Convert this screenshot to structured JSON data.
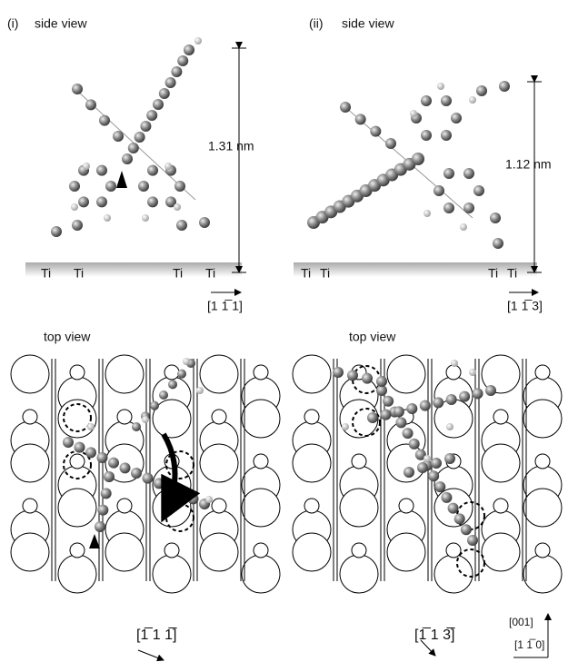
{
  "panels": [
    {
      "label": "(i)",
      "side_title": "side view",
      "height": "1.31 nm",
      "ti_labels": [
        "Ti",
        "Ti",
        "Ti",
        "Ti"
      ],
      "side_direction": "[1 1̅ 1]",
      "top_title": "top view",
      "top_direction": "[1̅ 1 1̅]"
    },
    {
      "label": "(ii)",
      "side_title": "side view",
      "height": "1.12 nm",
      "ti_labels": [
        "Ti",
        "Ti",
        "Ti",
        "Ti"
      ],
      "side_direction": "[1 1̅ 3]",
      "top_title": "top view",
      "top_direction": "[1̅ 1 3̅]"
    }
  ],
  "axes_labels": {
    "vertical": "[001]",
    "horizontal": "[1 1̅ 0]"
  }
}
